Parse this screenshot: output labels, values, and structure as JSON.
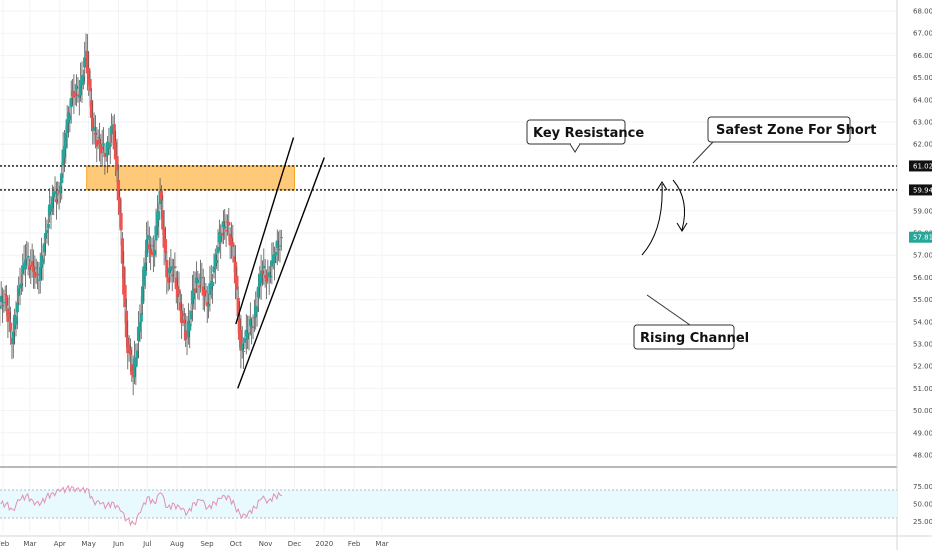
{
  "chart_data": [
    {
      "type": "candlestick",
      "panel": "price",
      "title": "",
      "xlabel": "",
      "ylabel": "",
      "x_ticks": [
        "Feb",
        "Mar",
        "Apr",
        "May",
        "Jun",
        "Jul",
        "Aug",
        "Sep",
        "Oct",
        "Nov",
        "Dec",
        "2020",
        "Feb",
        "Mar"
      ],
      "y_ticks": [
        "48.00",
        "49.00",
        "50.00",
        "51.00",
        "52.00",
        "53.00",
        "54.00",
        "55.00",
        "56.00",
        "57.00",
        "58.00",
        "59.00",
        "60.00",
        "61.00",
        "62.00",
        "63.00",
        "64.00",
        "65.00",
        "66.00",
        "67.00",
        "68.00"
      ],
      "ylim": [
        47.6,
        68.5
      ],
      "grid": true,
      "candle_colors": {
        "up": "#26a69a",
        "down": "#ef5350",
        "wick": "#555555"
      },
      "close_series": {
        "x_dates": [
          "2019-01-28",
          "2019-02-04",
          "2019-02-11",
          "2019-02-18",
          "2019-02-25",
          "2019-03-04",
          "2019-03-11",
          "2019-03-18",
          "2019-03-25",
          "2019-04-01",
          "2019-04-08",
          "2019-04-15",
          "2019-04-22",
          "2019-04-29",
          "2019-05-06",
          "2019-05-13",
          "2019-05-20",
          "2019-05-27",
          "2019-06-03",
          "2019-06-10",
          "2019-06-17",
          "2019-06-24",
          "2019-07-01",
          "2019-07-08",
          "2019-07-15",
          "2019-07-22",
          "2019-07-29",
          "2019-08-05",
          "2019-08-12",
          "2019-08-19",
          "2019-08-26",
          "2019-09-02",
          "2019-09-09",
          "2019-09-16",
          "2019-09-23",
          "2019-09-30",
          "2019-10-07",
          "2019-10-14",
          "2019-10-21",
          "2019-10-28",
          "2019-11-04",
          "2019-11-11"
        ],
        "values": [
          55.2,
          53.0,
          55.5,
          56.8,
          56.5,
          55.9,
          58.0,
          59.6,
          59.8,
          62.5,
          64.4,
          64.2,
          66.2,
          62.6,
          62.0,
          61.5,
          62.9,
          58.9,
          53.3,
          51.5,
          54.0,
          57.7,
          57.0,
          59.9,
          56.0,
          56.5,
          54.5,
          53.3,
          55.5,
          56.0,
          54.7,
          56.5,
          58.0,
          58.5,
          56.7,
          52.7,
          53.5,
          54.2,
          56.3,
          56.0,
          57.0,
          57.81
        ]
      },
      "price_labels": [
        {
          "value": 61.02,
          "text": "61.02",
          "color": "#111111"
        },
        {
          "value": 59.94,
          "text": "59.94",
          "color": "#111111"
        },
        {
          "value": 57.81,
          "text": "57.81",
          "color": "#26a69a"
        }
      ],
      "resistance_zone": {
        "y_range": [
          59.94,
          61.02
        ],
        "x_dates": [
          "2019-04-29",
          "2019-12-01"
        ],
        "color": "#ffb74d"
      },
      "horizontal_lines": [
        61.02,
        59.94
      ],
      "channel": {
        "upper": {
          "x_dates": [
            "2019-10-01",
            "2019-11-30"
          ],
          "y": [
            53.9,
            62.3
          ]
        },
        "lower": {
          "x_dates": [
            "2019-10-03",
            "2020-01-01"
          ],
          "y": [
            51.0,
            61.4
          ]
        }
      },
      "annotations": {
        "key_resistance": "Key Resistance",
        "safest_zone": "Safest Zone For Short",
        "rising_channel": "Rising Channel"
      }
    },
    {
      "type": "line",
      "panel": "oscillator",
      "title": "",
      "y_ticks": [
        "25.00",
        "50.00",
        "75.00"
      ],
      "ylim": [
        10,
        90
      ],
      "band": [
        30,
        70
      ],
      "band_color": "#e8fafd",
      "line_color": "#e091b3",
      "x_dates": [
        "2019-01-28",
        "2019-02-04",
        "2019-02-11",
        "2019-02-18",
        "2019-02-25",
        "2019-03-04",
        "2019-03-11",
        "2019-03-18",
        "2019-03-25",
        "2019-04-01",
        "2019-04-08",
        "2019-04-15",
        "2019-04-22",
        "2019-04-29",
        "2019-05-06",
        "2019-05-13",
        "2019-05-20",
        "2019-05-27",
        "2019-06-03",
        "2019-06-10",
        "2019-06-17",
        "2019-06-24",
        "2019-07-01",
        "2019-07-08",
        "2019-07-15",
        "2019-07-22",
        "2019-07-29",
        "2019-08-05",
        "2019-08-12",
        "2019-08-19",
        "2019-08-26",
        "2019-09-02",
        "2019-09-09",
        "2019-09-16",
        "2019-09-23",
        "2019-09-30",
        "2019-10-07",
        "2019-10-14",
        "2019-10-21",
        "2019-10-28",
        "2019-11-04",
        "2019-11-11"
      ],
      "values": [
        50,
        42,
        55,
        62,
        55,
        48,
        60,
        66,
        68,
        72,
        74,
        68,
        72,
        55,
        50,
        48,
        52,
        40,
        28,
        22,
        38,
        60,
        52,
        66,
        45,
        50,
        42,
        38,
        52,
        55,
        45,
        52,
        58,
        62,
        48,
        30,
        38,
        45,
        58,
        55,
        62,
        62
      ]
    }
  ]
}
